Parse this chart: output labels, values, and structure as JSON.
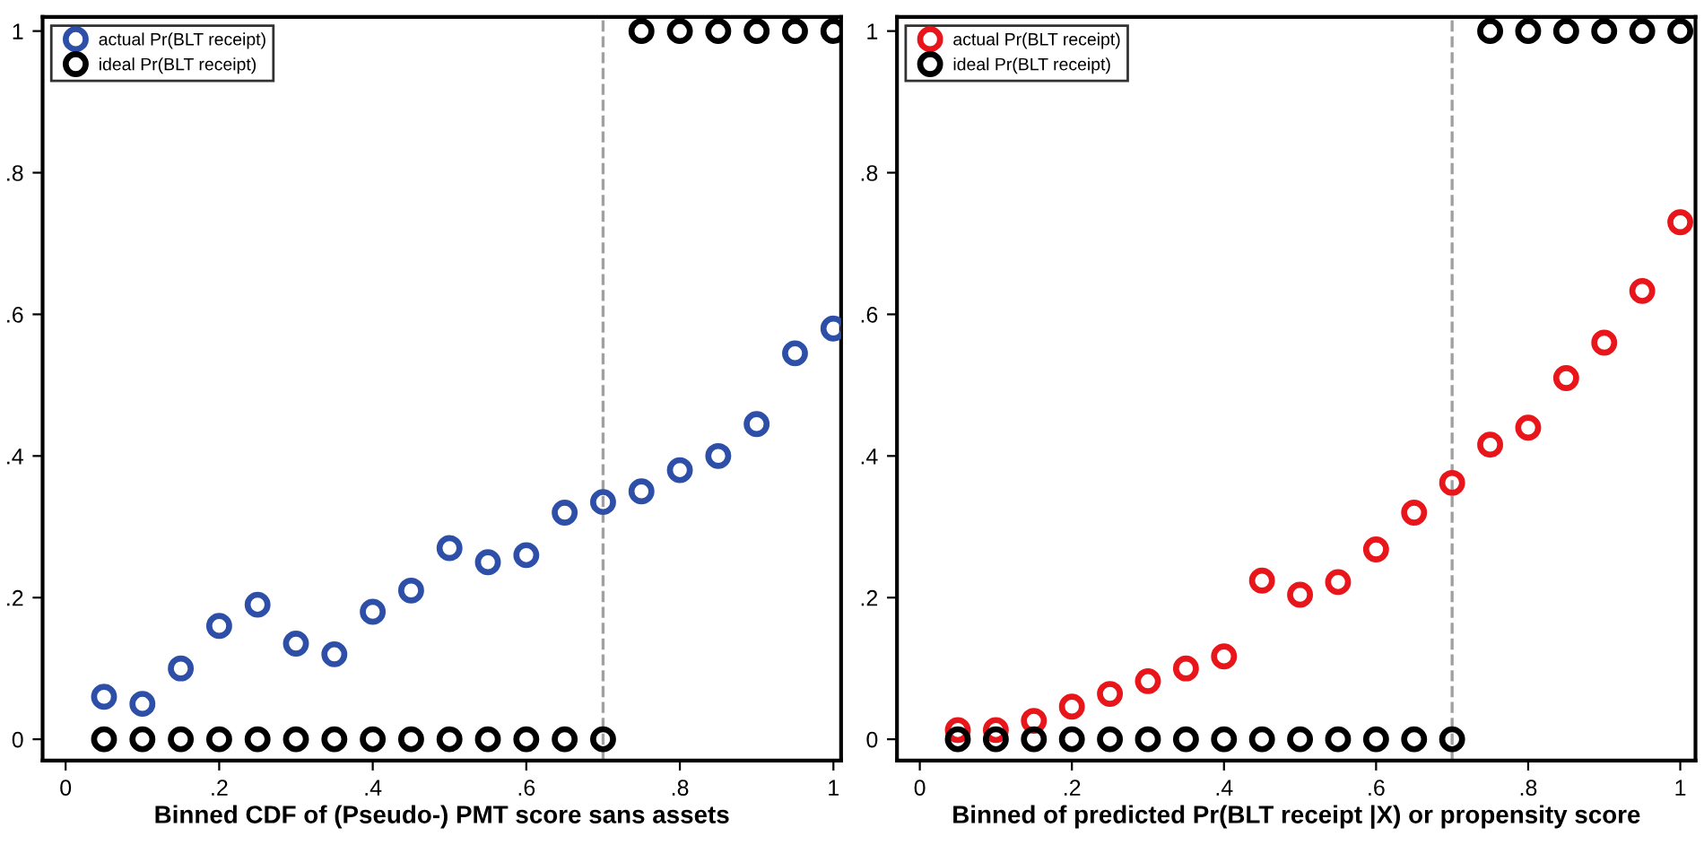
{
  "chart_data": [
    {
      "type": "scatter",
      "xlabel": "Binned CDF of (Pseudo-) PMT score sans assets",
      "x": [
        0.05,
        0.1,
        0.15,
        0.2,
        0.25,
        0.3,
        0.35,
        0.4,
        0.45,
        0.5,
        0.55,
        0.6,
        0.65,
        0.7,
        0.75,
        0.8,
        0.85,
        0.9,
        0.95,
        1.0
      ],
      "series": [
        {
          "name": "actual Pr(BLT receipt)",
          "color": "#2e4fa8",
          "values": [
            0.06,
            0.05,
            0.1,
            0.16,
            0.19,
            0.135,
            0.12,
            0.18,
            0.21,
            0.27,
            0.25,
            0.26,
            0.32,
            0.335,
            0.35,
            0.38,
            0.4,
            0.445,
            0.545,
            0.58
          ]
        },
        {
          "name": "ideal Pr(BLT receipt)",
          "color": "#000000",
          "values": [
            0,
            0,
            0,
            0,
            0,
            0,
            0,
            0,
            0,
            0,
            0,
            0,
            0,
            0,
            1,
            1,
            1,
            1,
            1,
            1
          ]
        }
      ],
      "xlim": [
        -0.03,
        1.01
      ],
      "ylim": [
        -0.03,
        1.02
      ],
      "xticks": [
        0,
        {
          "value": 0.2,
          "label": ".2"
        },
        {
          "value": 0.4,
          "label": ".4"
        },
        {
          "value": 0.6,
          "label": ".6"
        },
        {
          "value": 0.8,
          "label": ".8"
        },
        1
      ],
      "yticks": [
        0,
        {
          "value": 0.2,
          "label": ".2"
        },
        {
          "value": 0.4,
          "label": ".4"
        },
        {
          "value": 0.6,
          "label": ".6"
        },
        {
          "value": 0.8,
          "label": ".8"
        },
        1
      ],
      "ref_lines": [
        {
          "axis": "x",
          "value": 0.7,
          "label": null,
          "color": "#a0a0a0",
          "line_style": "dashed"
        }
      ],
      "marker": "circle",
      "legend": "top left",
      "grid": false
    },
    {
      "type": "scatter",
      "xlabel": "Binned of predicted Pr(BLT receipt |X) or propensity score",
      "x": [
        0.05,
        0.1,
        0.15,
        0.2,
        0.25,
        0.3,
        0.35,
        0.4,
        0.45,
        0.5,
        0.55,
        0.6,
        0.65,
        0.7,
        0.75,
        0.8,
        0.85,
        0.9,
        0.95,
        1.0
      ],
      "series": [
        {
          "name": "actual Pr(BLT receipt)",
          "color": "#e8151b",
          "values": [
            0.013,
            0.013,
            0.026,
            0.046,
            0.064,
            0.082,
            0.1,
            0.117,
            0.224,
            0.204,
            0.222,
            0.268,
            0.32,
            0.362,
            0.416,
            0.44,
            0.51,
            0.56,
            0.633,
            0.73
          ]
        },
        {
          "name": "ideal Pr(BLT receipt)",
          "color": "#000000",
          "values": [
            0,
            0,
            0,
            0,
            0,
            0,
            0,
            0,
            0,
            0,
            0,
            0,
            0,
            0,
            1,
            1,
            1,
            1,
            1,
            1
          ]
        }
      ],
      "xlim": [
        -0.03,
        1.02
      ],
      "ylim": [
        -0.03,
        1.02
      ],
      "xticks": [
        0,
        {
          "value": 0.2,
          "label": ".2"
        },
        {
          "value": 0.4,
          "label": ".4"
        },
        {
          "value": 0.6,
          "label": ".6"
        },
        {
          "value": 0.8,
          "label": ".8"
        },
        1
      ],
      "yticks": [
        0,
        {
          "value": 0.2,
          "label": ".2"
        },
        {
          "value": 0.4,
          "label": ".4"
        },
        {
          "value": 0.6,
          "label": ".6"
        },
        {
          "value": 0.8,
          "label": ".8"
        },
        1
      ],
      "ref_lines": [
        {
          "axis": "x",
          "value": 0.7,
          "label": null,
          "color": "#a0a0a0",
          "line_style": "dashed"
        }
      ],
      "marker": "circle",
      "legend": "top left",
      "grid": false
    }
  ]
}
